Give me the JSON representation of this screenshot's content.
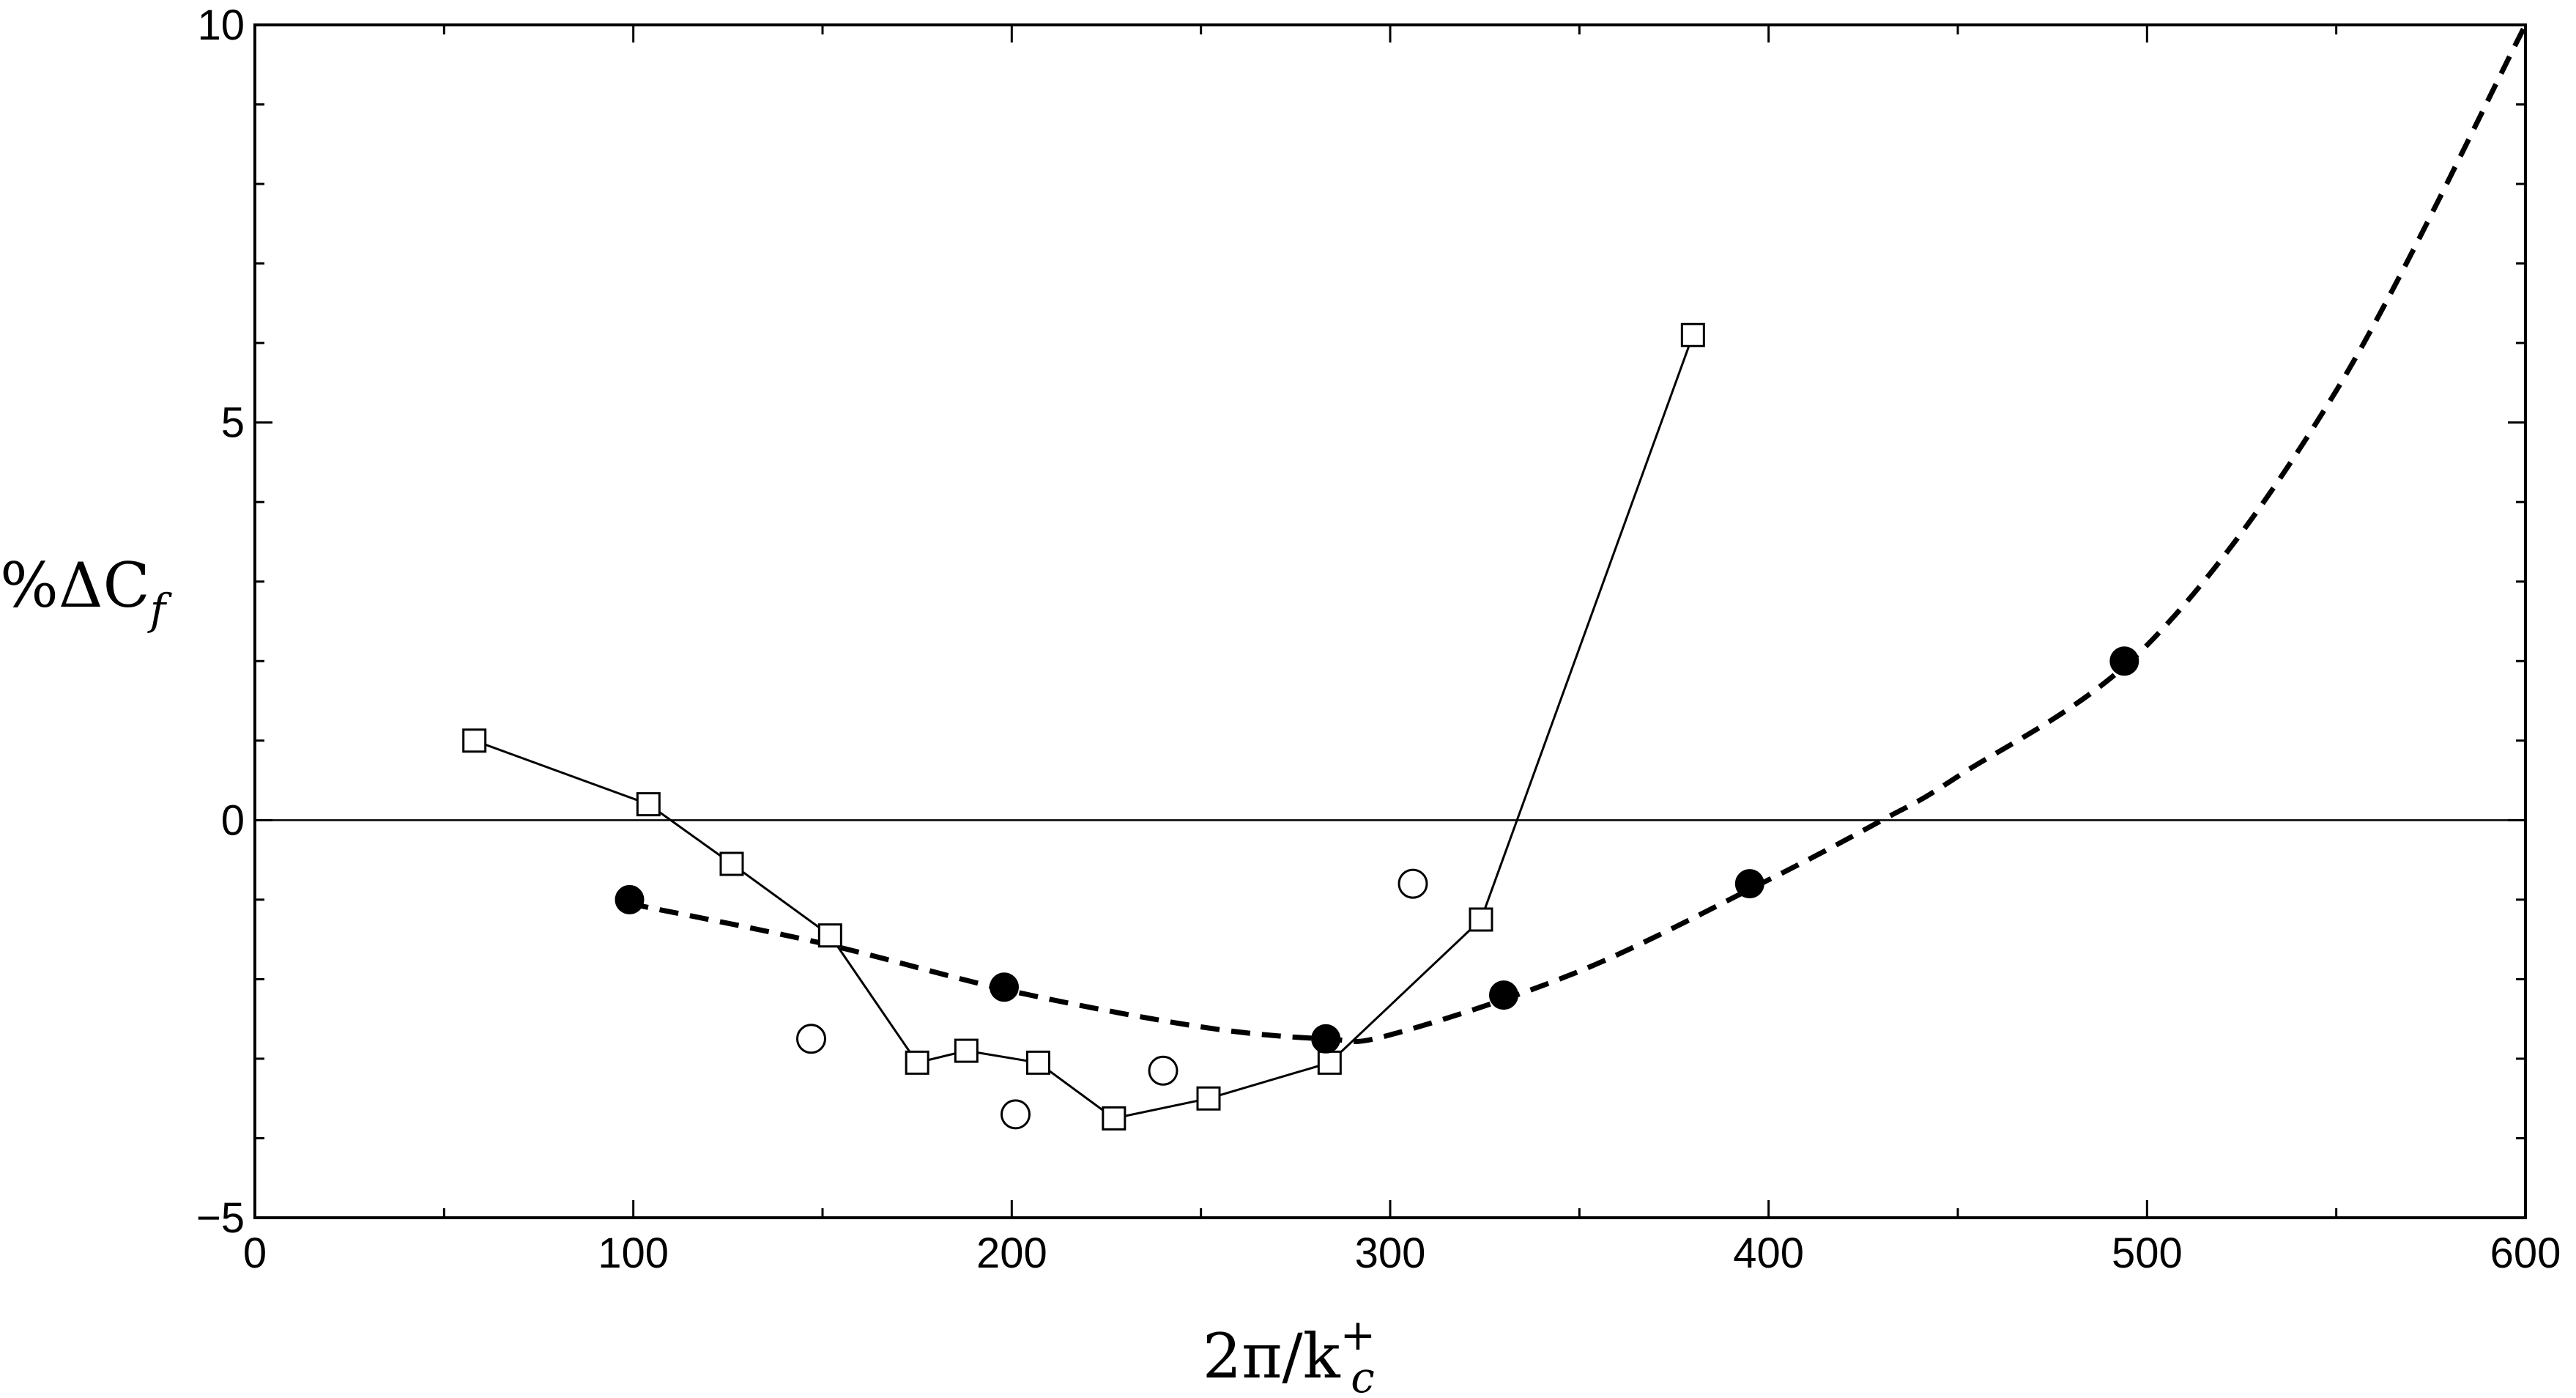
{
  "chart_data": {
    "type": "scatter",
    "xlabel_parts": {
      "main": "2π/k",
      "sup": "+",
      "sub": "c"
    },
    "ylabel_parts": {
      "main": "%ΔC",
      "sub": "f"
    },
    "xlim": [
      0,
      600
    ],
    "ylim": [
      -5,
      10
    ],
    "x_ticks": [
      0,
      100,
      200,
      300,
      400,
      500,
      600
    ],
    "y_ticks": [
      -5,
      0,
      5,
      10
    ],
    "x_tick_labels": [
      "0",
      "100",
      "200",
      "300",
      "400",
      "500",
      "600"
    ],
    "y_tick_labels": [
      "−5",
      "0",
      "5",
      "10"
    ],
    "reference_line_y": 0,
    "series": [
      {
        "marker": "open-square",
        "line": "solid",
        "x": [
          58,
          104,
          126,
          152,
          175,
          188,
          207,
          227,
          252,
          284,
          324,
          380
        ],
        "y": [
          1.0,
          0.2,
          -0.55,
          -1.45,
          -3.05,
          -2.9,
          -3.05,
          -3.75,
          -3.5,
          -3.05,
          -1.25,
          6.1
        ]
      },
      {
        "marker": "filled-circle",
        "line": "none",
        "x": [
          99,
          198,
          283,
          330,
          395,
          494
        ],
        "y": [
          -1.0,
          -2.1,
          -2.75,
          -2.2,
          -0.8,
          2.0
        ]
      },
      {
        "marker": "open-circle",
        "line": "none",
        "x": [
          147,
          201,
          240,
          306
        ],
        "y": [
          -2.75,
          -3.7,
          -3.15,
          -0.8
        ]
      },
      {
        "marker": "none",
        "line": "dashed",
        "fit": {
          "x": [
            99,
            150,
            200,
            250,
            283,
            300,
            350,
            400,
            430,
            450,
            500,
            550,
            600
          ],
          "y": [
            -1.05,
            -1.55,
            -2.15,
            -2.6,
            -2.75,
            -2.7,
            -1.9,
            -0.75,
            0.0,
            0.55,
            2.2,
            5.4,
            10.0
          ]
        }
      }
    ]
  }
}
